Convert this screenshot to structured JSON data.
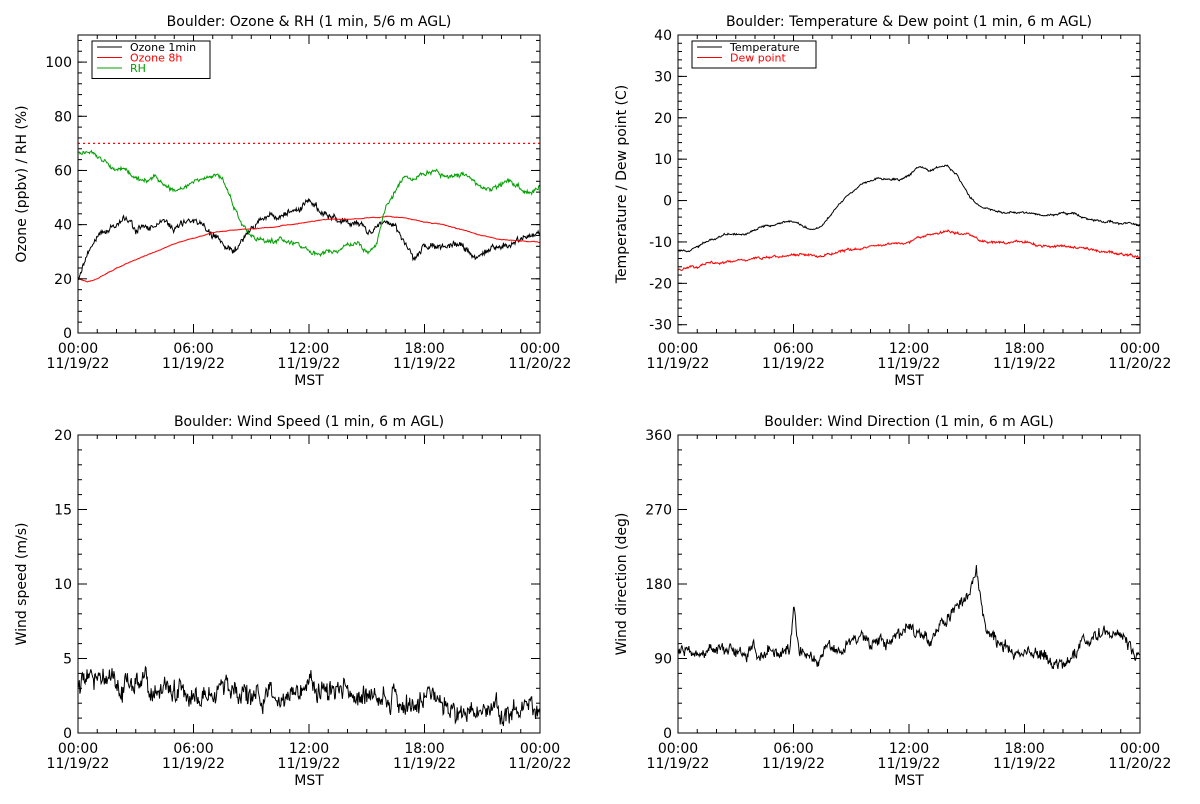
{
  "page": {
    "background": "#ffffff"
  },
  "chart_data": [
    {
      "id": "ozone_rh",
      "type": "line",
      "title": "Boulder: Ozone & RH (1 min, 5/6 m AGL)",
      "xlabel": "MST",
      "ylabel": "Ozone (ppbv) / RH (%)",
      "ylim": [
        0,
        110
      ],
      "yticks": [
        0,
        20,
        40,
        60,
        80,
        100
      ],
      "xlim_hours": [
        0,
        24
      ],
      "xticks": [
        {
          "hour": 0,
          "time": "00:00",
          "date": "11/19/22"
        },
        {
          "hour": 6,
          "time": "06:00",
          "date": "11/19/22"
        },
        {
          "hour": 12,
          "time": "12:00",
          "date": "11/19/22"
        },
        {
          "hour": 18,
          "time": "18:00",
          "date": "11/19/22"
        },
        {
          "hour": 24,
          "time": "00:00",
          "date": "11/20/22"
        }
      ],
      "legend": {
        "placement": "top-left",
        "entries": [
          {
            "label": "Ozone 1min",
            "color": "#000000"
          },
          {
            "label": "Ozone 8h",
            "color": "#ff0000"
          },
          {
            "label": "RH",
            "color": "#00a000"
          }
        ]
      },
      "reference_lines": [
        {
          "y": 70,
          "color": "#ff0000",
          "style": "dotted"
        }
      ],
      "series": [
        {
          "name": "Ozone 1min",
          "color": "#000000",
          "noise": 1.5,
          "x": [
            0,
            0.5,
            1,
            1.5,
            2,
            2.5,
            3,
            3.5,
            4,
            4.5,
            5,
            5.5,
            6,
            6.5,
            7,
            7.5,
            8,
            8.5,
            9,
            9.5,
            10,
            10.5,
            11,
            11.5,
            12,
            12.5,
            13,
            13.5,
            14,
            14.5,
            15,
            15.5,
            16,
            16.5,
            17,
            17.5,
            18,
            18.5,
            19,
            19.5,
            20,
            20.5,
            21,
            21.5,
            22,
            22.5,
            23,
            23.5,
            24
          ],
          "y": [
            20,
            30,
            35,
            38,
            41,
            42,
            38,
            40,
            39,
            41,
            38,
            40,
            42,
            41,
            36,
            32,
            30,
            34,
            38,
            42,
            43,
            43,
            45,
            46,
            48,
            46,
            44,
            43,
            41,
            41,
            38,
            40,
            40,
            39,
            33,
            27,
            33,
            32,
            32,
            33,
            31,
            28,
            30,
            31,
            32,
            34,
            35,
            36,
            37
          ]
        },
        {
          "name": "Ozone 8h",
          "color": "#ff0000",
          "noise": 0.15,
          "x": [
            0,
            0.5,
            1,
            1.5,
            2,
            3,
            4,
            5,
            6,
            7,
            8,
            9,
            10,
            11,
            12,
            13,
            14,
            15,
            16,
            17,
            18,
            19,
            20,
            21,
            22,
            23,
            24
          ],
          "y": [
            20,
            19,
            20,
            22,
            24,
            27,
            30,
            33,
            35,
            37,
            38,
            38.5,
            39,
            40,
            41,
            42,
            42,
            42.5,
            43,
            42.5,
            41,
            40,
            38,
            36,
            34.5,
            34,
            33.5
          ]
        },
        {
          "name": "RH",
          "color": "#00a000",
          "noise": 1.0,
          "x": [
            0,
            0.5,
            1,
            1.5,
            2,
            2.5,
            3,
            3.5,
            4,
            4.5,
            5,
            5.5,
            6,
            6.5,
            7,
            7.5,
            8,
            8.5,
            9,
            9.5,
            10,
            10.5,
            11,
            11.5,
            12,
            12.5,
            13,
            13.5,
            14,
            14.5,
            15,
            15.5,
            16,
            16.5,
            17,
            17.5,
            18,
            18.5,
            19,
            19.5,
            20,
            20.5,
            21,
            21.5,
            22,
            22.5,
            23,
            23.5,
            24
          ],
          "y": [
            66,
            67,
            65,
            62,
            61,
            60,
            57,
            56,
            57,
            55,
            52,
            53,
            56,
            57,
            58,
            57,
            48,
            40,
            36,
            35,
            34,
            35,
            33,
            32,
            30,
            29,
            30,
            31,
            32,
            33,
            30,
            33,
            47,
            53,
            58,
            57,
            58,
            60,
            58,
            58,
            59,
            57,
            54,
            53,
            55,
            56,
            53,
            52,
            54
          ]
        }
      ]
    },
    {
      "id": "temp_dew",
      "type": "line",
      "title": "Boulder: Temperature & Dew point (1 min, 6 m AGL)",
      "xlabel": "MST",
      "ylabel": "Temperature / Dew point (C)",
      "ylim": [
        -32,
        40
      ],
      "yticks": [
        -30,
        -20,
        -10,
        0,
        10,
        20,
        30,
        40
      ],
      "xlim_hours": [
        0,
        24
      ],
      "xticks": [
        {
          "hour": 0,
          "time": "00:00",
          "date": "11/19/22"
        },
        {
          "hour": 6,
          "time": "06:00",
          "date": "11/19/22"
        },
        {
          "hour": 12,
          "time": "12:00",
          "date": "11/19/22"
        },
        {
          "hour": 18,
          "time": "18:00",
          "date": "11/19/22"
        },
        {
          "hour": 24,
          "time": "00:00",
          "date": "11/20/22"
        }
      ],
      "legend": {
        "placement": "top-left",
        "entries": [
          {
            "label": "Temperature",
            "color": "#000000"
          },
          {
            "label": "Dew point",
            "color": "#ff0000"
          }
        ]
      },
      "series": [
        {
          "name": "Temperature",
          "color": "#000000",
          "noise": 0.3,
          "x": [
            0,
            0.5,
            1,
            1.5,
            2,
            2.5,
            3,
            3.5,
            4,
            4.5,
            5,
            5.5,
            6,
            6.5,
            7,
            7.5,
            8,
            8.5,
            9,
            9.5,
            10,
            10.5,
            11,
            11.5,
            12,
            12.5,
            13,
            13.5,
            14,
            14.5,
            15,
            15.5,
            16,
            16.5,
            17,
            17.5,
            18,
            18.5,
            19,
            19.5,
            20,
            20.5,
            21,
            21.5,
            22,
            22.5,
            23,
            23.5,
            24
          ],
          "y": [
            -12,
            -12,
            -11,
            -10,
            -9,
            -8,
            -8,
            -8,
            -7,
            -6,
            -6,
            -5,
            -5,
            -6,
            -7,
            -6,
            -3,
            0,
            2,
            4,
            5,
            5.5,
            5,
            5,
            6,
            8,
            7,
            8,
            8.5,
            6,
            2,
            -1,
            -2,
            -2.5,
            -3,
            -3,
            -3,
            -3,
            -3.5,
            -3.5,
            -3,
            -3,
            -4,
            -4.5,
            -5,
            -5,
            -5.5,
            -5.5,
            -6
          ]
        },
        {
          "name": "Dew point",
          "color": "#ff0000",
          "noise": 0.35,
          "x": [
            0,
            0.5,
            1,
            1.5,
            2,
            2.5,
            3,
            3.5,
            4,
            4.5,
            5,
            5.5,
            6,
            6.5,
            7,
            7.5,
            8,
            8.5,
            9,
            9.5,
            10,
            10.5,
            11,
            11.5,
            12,
            12.5,
            13,
            13.5,
            14,
            14.5,
            15,
            15.5,
            16,
            16.5,
            17,
            17.5,
            18,
            18.5,
            19,
            19.5,
            20,
            20.5,
            21,
            21.5,
            22,
            22.5,
            23,
            23.5,
            24
          ],
          "y": [
            -16.5,
            -16,
            -16,
            -15,
            -15,
            -15,
            -14.5,
            -14.5,
            -14,
            -14,
            -13.5,
            -13.5,
            -13,
            -13,
            -13.5,
            -13.5,
            -13,
            -12,
            -12,
            -11.5,
            -11,
            -11,
            -10.5,
            -10.5,
            -10,
            -9,
            -8.5,
            -8,
            -7.5,
            -8,
            -8,
            -9,
            -10,
            -10,
            -10.5,
            -10,
            -10,
            -10.5,
            -11,
            -11,
            -11,
            -11.5,
            -11.5,
            -12,
            -12.5,
            -12.5,
            -13,
            -13,
            -14
          ]
        }
      ]
    },
    {
      "id": "wind_speed",
      "type": "line",
      "title": "Boulder: Wind Speed (1 min, 6 m AGL)",
      "xlabel": "MST",
      "ylabel": "Wind speed (m/s)",
      "ylim": [
        0,
        20
      ],
      "yticks": [
        0,
        5,
        10,
        15,
        20
      ],
      "xlim_hours": [
        0,
        24
      ],
      "xticks": [
        {
          "hour": 0,
          "time": "00:00",
          "date": "11/19/22"
        },
        {
          "hour": 6,
          "time": "06:00",
          "date": "11/19/22"
        },
        {
          "hour": 12,
          "time": "12:00",
          "date": "11/19/22"
        },
        {
          "hour": 18,
          "time": "18:00",
          "date": "11/19/22"
        },
        {
          "hour": 24,
          "time": "00:00",
          "date": "11/20/22"
        }
      ],
      "series": [
        {
          "name": "",
          "color": "#000000",
          "noise": 0.9,
          "x": [
            0,
            1,
            2,
            3,
            4,
            5,
            6,
            7,
            8,
            9,
            10,
            11,
            12,
            13,
            14,
            15,
            16,
            17,
            18,
            19,
            20,
            21,
            22,
            23,
            24
          ],
          "y": [
            3.5,
            3.5,
            3.2,
            3.2,
            2.8,
            2.6,
            2.2,
            2.5,
            2.6,
            2.5,
            2.8,
            2.7,
            2.9,
            2.9,
            2.6,
            2.3,
            2.2,
            2.0,
            1.9,
            1.9,
            1.7,
            1.5,
            1.4,
            1.6,
            1.8
          ]
        }
      ]
    },
    {
      "id": "wind_dir",
      "type": "line",
      "title": "Boulder: Wind Direction (1 min, 6 m AGL)",
      "xlabel": "MST",
      "ylabel": "Wind direction (deg)",
      "ylim": [
        0,
        360
      ],
      "yticks": [
        0,
        90,
        180,
        270,
        360
      ],
      "xlim_hours": [
        0,
        24
      ],
      "xticks": [
        {
          "hour": 0,
          "time": "00:00",
          "date": "11/19/22"
        },
        {
          "hour": 6,
          "time": "06:00",
          "date": "11/19/22"
        },
        {
          "hour": 12,
          "time": "12:00",
          "date": "11/19/22"
        },
        {
          "hour": 18,
          "time": "18:00",
          "date": "11/19/22"
        },
        {
          "hour": 24,
          "time": "00:00",
          "date": "11/20/22"
        }
      ],
      "series": [
        {
          "name": "",
          "color": "#000000",
          "noise": 9,
          "x": [
            0,
            1,
            2,
            3,
            4,
            5,
            5.8,
            6,
            6.3,
            7,
            8,
            9,
            10,
            11,
            12,
            13,
            14,
            15,
            15.5,
            16,
            17,
            18,
            19,
            20,
            21,
            22,
            23,
            24
          ],
          "y": [
            100,
            98,
            100,
            97,
            98,
            97,
            100,
            150,
            100,
            92,
            100,
            105,
            110,
            115,
            125,
            120,
            140,
            160,
            185,
            120,
            105,
            95,
            95,
            80,
            110,
            120,
            118,
            90
          ]
        }
      ]
    }
  ]
}
